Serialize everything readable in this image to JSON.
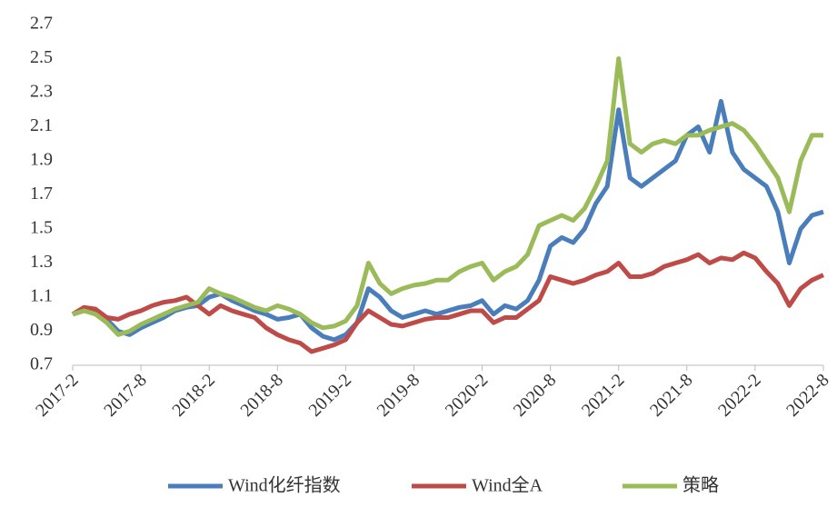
{
  "chart_data": {
    "type": "line",
    "categories": [
      "2017-2",
      null,
      null,
      null,
      null,
      null,
      "2017-8",
      null,
      null,
      null,
      null,
      null,
      "2018-2",
      null,
      null,
      null,
      null,
      null,
      "2018-8",
      null,
      null,
      null,
      null,
      null,
      "2019-2",
      null,
      null,
      null,
      null,
      null,
      "2019-8",
      null,
      null,
      null,
      null,
      null,
      "2020-2",
      null,
      null,
      null,
      null,
      null,
      "2020-8",
      null,
      null,
      null,
      null,
      null,
      "2021-2",
      null,
      null,
      null,
      null,
      null,
      "2021-8",
      null,
      null,
      null,
      null,
      null,
      "2022-2",
      null,
      null,
      null,
      null,
      null,
      "2022-8"
    ],
    "series": [
      {
        "name": "Wind化纤指数",
        "color": "#4a7ebb",
        "values": [
          1.0,
          1.02,
          1.01,
          0.97,
          0.9,
          0.88,
          0.92,
          0.95,
          0.98,
          1.02,
          1.04,
          1.05,
          1.1,
          1.12,
          1.08,
          1.05,
          1.02,
          1.0,
          0.97,
          0.98,
          1.0,
          0.92,
          0.87,
          0.85,
          0.88,
          0.95,
          1.15,
          1.1,
          1.02,
          0.98,
          1.0,
          1.02,
          1.0,
          1.02,
          1.04,
          1.05,
          1.08,
          1.0,
          1.05,
          1.03,
          1.08,
          1.2,
          1.4,
          1.45,
          1.42,
          1.5,
          1.65,
          1.75,
          2.2,
          1.8,
          1.75,
          1.8,
          1.85,
          1.9,
          2.05,
          2.1,
          1.95,
          2.25,
          1.95,
          1.85,
          1.8,
          1.75,
          1.6,
          1.3,
          1.5,
          1.58,
          1.6
        ]
      },
      {
        "name": "Wind全A",
        "color": "#be4b48",
        "values": [
          1.0,
          1.04,
          1.03,
          0.98,
          0.97,
          1.0,
          1.02,
          1.05,
          1.07,
          1.08,
          1.1,
          1.05,
          1.0,
          1.05,
          1.02,
          1.0,
          0.98,
          0.92,
          0.88,
          0.85,
          0.83,
          0.78,
          0.8,
          0.82,
          0.85,
          0.95,
          1.02,
          0.98,
          0.94,
          0.93,
          0.95,
          0.97,
          0.98,
          0.98,
          1.0,
          1.02,
          1.02,
          0.95,
          0.98,
          0.98,
          1.03,
          1.08,
          1.22,
          1.2,
          1.18,
          1.2,
          1.23,
          1.25,
          1.3,
          1.22,
          1.22,
          1.24,
          1.28,
          1.3,
          1.32,
          1.35,
          1.3,
          1.33,
          1.32,
          1.36,
          1.33,
          1.25,
          1.18,
          1.05,
          1.15,
          1.2,
          1.23
        ]
      },
      {
        "name": "策略",
        "color": "#9bbb59",
        "values": [
          1.0,
          1.02,
          1.0,
          0.95,
          0.88,
          0.9,
          0.94,
          0.97,
          1.0,
          1.03,
          1.05,
          1.07,
          1.15,
          1.12,
          1.1,
          1.07,
          1.04,
          1.02,
          1.05,
          1.03,
          1.0,
          0.95,
          0.92,
          0.93,
          0.96,
          1.05,
          1.3,
          1.18,
          1.12,
          1.15,
          1.17,
          1.18,
          1.2,
          1.2,
          1.25,
          1.28,
          1.3,
          1.2,
          1.25,
          1.28,
          1.35,
          1.52,
          1.55,
          1.58,
          1.55,
          1.62,
          1.75,
          1.9,
          2.5,
          2.0,
          1.95,
          2.0,
          2.02,
          2.0,
          2.05,
          2.05,
          2.08,
          2.1,
          2.12,
          2.08,
          2.0,
          1.9,
          1.8,
          1.6,
          1.9,
          2.05,
          2.05
        ]
      }
    ],
    "ylim": [
      0.7,
      2.7
    ],
    "yticks": [
      0.7,
      0.9,
      1.1,
      1.3,
      1.5,
      1.7,
      1.9,
      2.1,
      2.3,
      2.5,
      2.7
    ],
    "grid": false
  }
}
